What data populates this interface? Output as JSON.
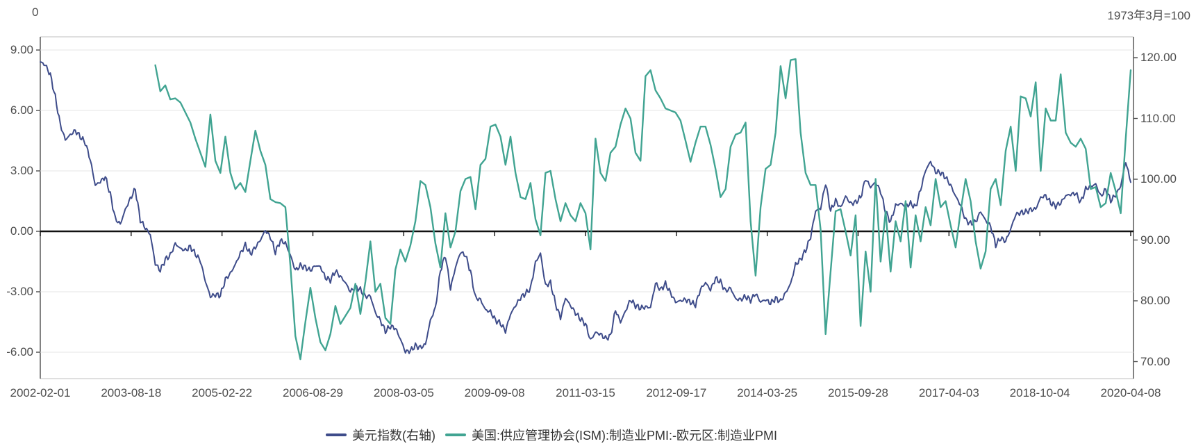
{
  "header": {
    "left_label": "0",
    "right_label": "1973年3月=100"
  },
  "legend": [
    {
      "label": "美元指数(右轴)",
      "color": "#3e4c8a"
    },
    {
      "label": "美国:供应管理协会(ISM):制造业PMI:-欧元区:制造业PMI",
      "color": "#41a492"
    }
  ],
  "chart_data": {
    "type": "line",
    "title": "",
    "xlabel": "",
    "ylabel_left": "",
    "ylabel_right": "1973年3月=100",
    "grid": "horizontal",
    "legend_position": "bottom-center",
    "x_axis": {
      "labels": [
        "2002-02-01",
        "2003-08-18",
        "2005-02-22",
        "2006-08-29",
        "2008-03-05",
        "2009-09-08",
        "2011-03-15",
        "2012-09-17",
        "2014-03-25",
        "2015-09-28",
        "2017-04-03",
        "2018-10-04",
        "2020-04-08"
      ],
      "start_month": "2002-02",
      "end_month": "2020-04",
      "months_total": 219
    },
    "left_axis": {
      "tick_labels": [
        "9.00",
        "6.00",
        "3.00",
        "0.00",
        "-3.00",
        "-6.00"
      ],
      "tick_values": [
        9,
        6,
        3,
        0,
        -3,
        -6
      ],
      "range_shown": [
        -7.3,
        9.66
      ],
      "zero_line": true
    },
    "right_axis": {
      "tick_labels": [
        "120.00",
        "110.00",
        "100.00",
        "90.00",
        "80.00",
        "70.00"
      ],
      "tick_values": [
        120,
        110,
        100,
        90,
        80,
        70
      ],
      "range_shown": [
        67.2,
        123.4
      ]
    },
    "weekly_noise_amplitude": 0.5,
    "series": [
      {
        "name": "美元指数(右轴)",
        "axis": "right",
        "color": "#3e4c8a",
        "stroke_width": 2,
        "noisy": true,
        "start_month": "2002-02",
        "start_offset_months": 0,
        "values": [
          119.3,
          118.8,
          117.2,
          113.5,
          109.0,
          106.5,
          107.3,
          108.0,
          107.0,
          106.0,
          103.2,
          99.0,
          99.6,
          100.4,
          97.5,
          93.5,
          92.6,
          95.0,
          96.8,
          98.4,
          93.3,
          92.0,
          90.9,
          86.1,
          85.0,
          86.8,
          87.5,
          89.4,
          88.6,
          88.3,
          88.9,
          87.7,
          86.6,
          83.2,
          80.7,
          81.0,
          80.9,
          83.5,
          84.5,
          86.0,
          87.8,
          89.2,
          87.7,
          88.8,
          90.0,
          91.6,
          90.5,
          88.0,
          89.9,
          89.5,
          87.5,
          85.0,
          85.8,
          85.5,
          85.0,
          85.8,
          85.6,
          83.8,
          83.4,
          84.9,
          84.0,
          83.0,
          81.5,
          82.3,
          81.8,
          80.7,
          80.8,
          78.0,
          76.8,
          75.0,
          75.8,
          75.5,
          73.7,
          71.6,
          71.8,
          72.6,
          72.3,
          72.8,
          76.8,
          78.8,
          85.0,
          87.5,
          82.0,
          85.5,
          88.0,
          87.5,
          84.8,
          80.5,
          80.2,
          78.5,
          78.2,
          76.8,
          76.3,
          75.0,
          77.8,
          79.2,
          80.5,
          81.2,
          82.0,
          86.3,
          87.8,
          82.5,
          83.0,
          79.5,
          77.2,
          80.5,
          79.2,
          78.0,
          77.0,
          76.2,
          73.5,
          74.8,
          74.5,
          73.8,
          74.2,
          78.5,
          76.5,
          78.3,
          80.2,
          79.2,
          78.8,
          79.0,
          78.9,
          82.9,
          81.8,
          82.8,
          81.3,
          79.8,
          80.0,
          80.2,
          79.8,
          79.3,
          81.9,
          83.0,
          81.8,
          83.7,
          83.1,
          81.6,
          82.1,
          80.3,
          80.2,
          80.7,
          80.1,
          81.2,
          79.8,
          80.2,
          79.6,
          80.4,
          79.9,
          81.3,
          82.8,
          86.0,
          86.8,
          88.3,
          90.5,
          94.8,
          95.2,
          99.4,
          94.8,
          96.5,
          95.3,
          97.2,
          96.0,
          96.2,
          97.0,
          100.1,
          98.7,
          99.5,
          98.0,
          94.6,
          93.0,
          95.7,
          96.0,
          95.6,
          96.0,
          95.4,
          98.3,
          101.5,
          102.9,
          101.2,
          101.1,
          100.3,
          99.0,
          97.2,
          95.7,
          93.3,
          92.7,
          93.0,
          94.7,
          93.2,
          92.3,
          89.2,
          90.3,
          89.8,
          91.8,
          94.2,
          94.5,
          94.6,
          95.0,
          95.1,
          97.0,
          97.3,
          96.1,
          95.6,
          96.1,
          97.3,
          97.5,
          97.7,
          96.2,
          98.4,
          98.8,
          99.2,
          97.2,
          98.3,
          96.5,
          97.4,
          98.9,
          102.9,
          99.5
        ]
      },
      {
        "name": "美国:供应管理协会(ISM):制造业PMI:-欧元区:制造业PMI",
        "axis": "left",
        "color": "#41a492",
        "stroke_width": 2.4,
        "noisy": false,
        "start_month": "2004-01",
        "start_offset_months": 23,
        "values": [
          8.25,
          6.95,
          7.25,
          6.55,
          6.6,
          6.4,
          5.9,
          5.4,
          4.6,
          3.9,
          3.2,
          5.8,
          3.5,
          2.9,
          4.7,
          2.9,
          2.1,
          2.4,
          1.95,
          3.5,
          5.0,
          4.0,
          3.3,
          1.6,
          1.45,
          1.4,
          1.2,
          -1.7,
          -5.2,
          -6.35,
          -4.5,
          -2.8,
          -4.3,
          -5.5,
          -5.9,
          -5.1,
          -3.7,
          -4.6,
          -4.2,
          -3.8,
          -2.6,
          -4.1,
          -2.5,
          -0.5,
          -3.0,
          -2.6,
          -4.3,
          -4.6,
          -1.9,
          -0.9,
          -1.5,
          -0.7,
          0.5,
          2.5,
          2.3,
          1.2,
          -0.6,
          -1.8,
          0.9,
          -0.8,
          0.0,
          2.0,
          2.6,
          2.7,
          1.1,
          3.3,
          3.6,
          5.2,
          5.3,
          4.7,
          3.3,
          4.7,
          2.9,
          1.7,
          1.6,
          2.4,
          0.6,
          -0.2,
          2.9,
          3.0,
          1.6,
          0.5,
          1.4,
          0.8,
          0.5,
          1.4,
          0.9,
          -0.9,
          4.6,
          2.9,
          2.5,
          3.9,
          4.2,
          5.3,
          6.1,
          5.6,
          3.9,
          3.5,
          7.7,
          8.0,
          7.0,
          6.6,
          6.1,
          6.0,
          5.9,
          5.5,
          4.5,
          3.45,
          4.4,
          5.2,
          5.2,
          4.3,
          3.1,
          1.7,
          2.1,
          4.2,
          4.8,
          4.9,
          5.4,
          0.5,
          -2.2,
          1.2,
          3.1,
          3.3,
          4.9,
          8.2,
          6.6,
          8.5,
          8.55,
          4.9,
          2.9,
          2.3,
          2.3,
          0.1,
          -5.1,
          -2.0,
          1.0,
          1.1,
          0.0,
          -1.2,
          0.8,
          -4.7,
          -1.0,
          -3.0,
          2.6,
          -1.5,
          1.0,
          -2.0,
          0.5,
          -0.5,
          1.5,
          -1.8,
          0.8,
          -0.5,
          1.2,
          0.3,
          2.6,
          1.2,
          1.5,
          0.3,
          -0.8,
          1.0,
          2.6,
          1.5,
          -0.5,
          -1.85,
          -1.0,
          2.1,
          2.6,
          1.3,
          4.0,
          5.2,
          3.0,
          6.7,
          6.6,
          5.7,
          7.4,
          3.0,
          6.1,
          5.5,
          5.5,
          7.8,
          4.9,
          4.4,
          4.2,
          4.6,
          4.1,
          2.1,
          2.2,
          1.2,
          1.4,
          2.9,
          2.0,
          0.9,
          4.6,
          8.0
        ]
      }
    ],
    "colors": {
      "gridline": "#e6e6e6",
      "zero_line": "#111111",
      "border_top_bottom": "#cccccc",
      "axis_vertical": "#4d4d4d",
      "tick_text": "#4d4d4d"
    }
  }
}
